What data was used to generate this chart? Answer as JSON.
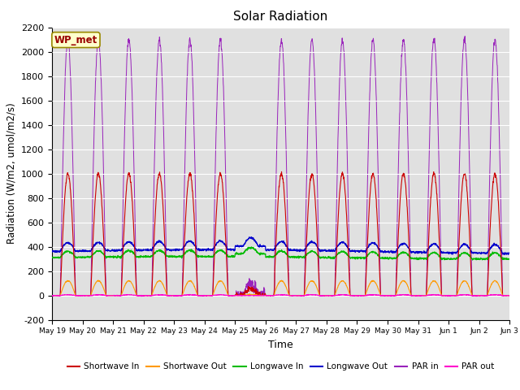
{
  "title": "Solar Radiation",
  "ylabel": "Radiation (W/m2, umol/m2/s)",
  "xlabel": "Time",
  "annotation": "WP_met",
  "ylim": [
    -200,
    2200
  ],
  "yticks": [
    -200,
    0,
    200,
    400,
    600,
    800,
    1000,
    1200,
    1400,
    1600,
    1800,
    2000,
    2200
  ],
  "n_days": 15,
  "background_color": "#e0e0e0",
  "figsize": [
    6.4,
    4.8
  ],
  "dpi": 100,
  "series": {
    "shortwave_in": {
      "color": "#cc0000",
      "label": "Shortwave In"
    },
    "shortwave_out": {
      "color": "#ff9900",
      "label": "Shortwave Out"
    },
    "longwave_in": {
      "color": "#00bb00",
      "label": "Longwave In"
    },
    "longwave_out": {
      "color": "#0000cc",
      "label": "Longwave Out"
    },
    "par_in": {
      "color": "#9922bb",
      "label": "PAR in"
    },
    "par_out": {
      "color": "#ff00cc",
      "label": "PAR out"
    }
  },
  "tick_labels": [
    "May 19",
    "May 20",
    "May 21",
    "May 22",
    "May 23",
    "May 24",
    "May 25",
    "May 26",
    "May 27",
    "May 28",
    "May 29",
    "May 30",
    "May 31",
    "Jun 1",
    "Jun 2",
    "Jun 3"
  ]
}
